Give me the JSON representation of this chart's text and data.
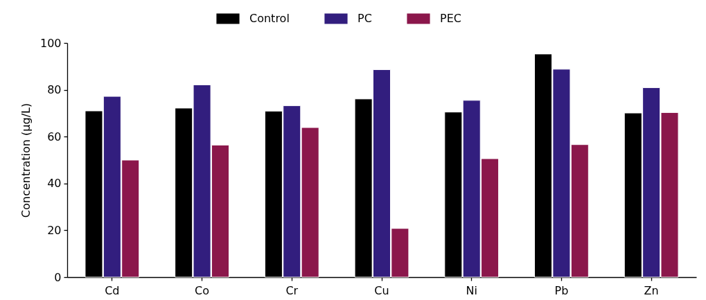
{
  "chart_data": {
    "type": "bar",
    "ylabel": "Concentration (μg/L)",
    "categories": [
      "Cd",
      "Co",
      "Cr",
      "Cu",
      "Ni",
      "Pb",
      "Zn"
    ],
    "series": [
      {
        "name": "Control",
        "color": "#000000",
        "values": [
          71.0,
          72.2,
          70.9,
          76.1,
          70.5,
          95.3,
          70.1
        ]
      },
      {
        "name": "PC",
        "color": "#321e7e",
        "values": [
          77.2,
          82.1,
          73.2,
          88.6,
          75.5,
          88.8,
          80.9
        ]
      },
      {
        "name": "PEC",
        "color": "#8b174b",
        "values": [
          50.0,
          56.4,
          63.9,
          20.8,
          50.6,
          56.6,
          70.3
        ]
      }
    ],
    "ylim": [
      0,
      100
    ],
    "yticks": [
      0,
      20,
      40,
      60,
      80,
      100
    ],
    "grid": false,
    "legend": "top"
  }
}
